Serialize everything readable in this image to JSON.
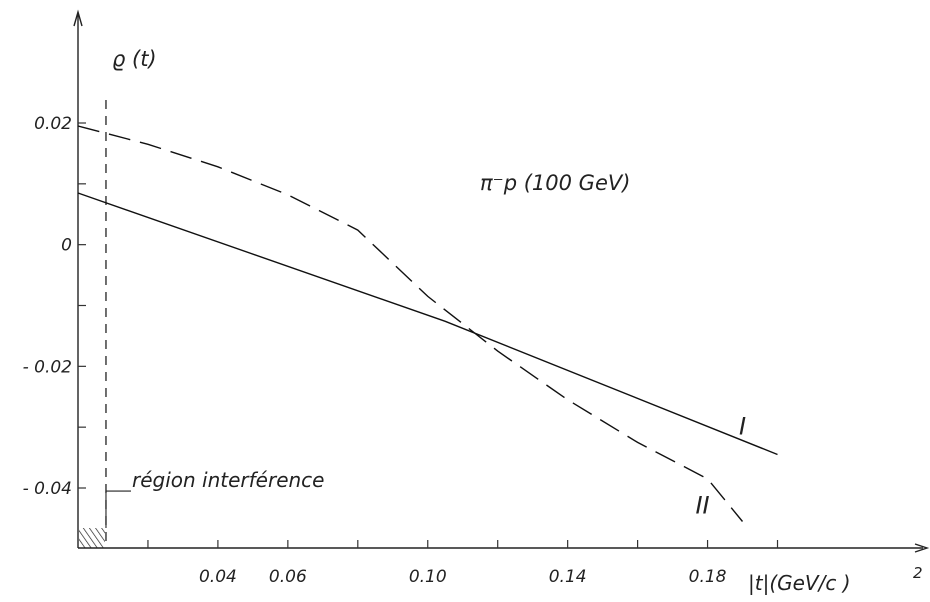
{
  "chart_data": {
    "type": "line",
    "title": "",
    "ylabel": "ϱ (t)",
    "xlabel_parts": {
      "main": "|t|(GeV/c )",
      "exponent": "2"
    },
    "xlim": [
      0.0,
      0.205
    ],
    "ylim": [
      -0.05,
      0.035
    ],
    "x_tick_labels": [
      {
        "value": 0.04,
        "label": "0.04"
      },
      {
        "value": 0.06,
        "label": "0.06"
      },
      {
        "value": 0.1,
        "label": "0.10"
      },
      {
        "value": 0.14,
        "label": "0.14"
      },
      {
        "value": 0.18,
        "label": "0.18"
      }
    ],
    "x_tick_marks": [
      0.02,
      0.04,
      0.06,
      0.08,
      0.1,
      0.12,
      0.14,
      0.16,
      0.18,
      0.2
    ],
    "y_tick_labels": [
      {
        "value": 0.02,
        "label": "0.02"
      },
      {
        "value": 0.0,
        "label": "0"
      },
      {
        "value": -0.02,
        "label": "- 0.02"
      },
      {
        "value": -0.04,
        "label": "- 0.04"
      }
    ],
    "y_tick_marks": [
      0.02,
      0.01,
      0.0,
      -0.01,
      -0.02,
      -0.03,
      -0.04
    ],
    "series": [
      {
        "name": "I",
        "style": "solid",
        "x": [
          0.0,
          0.105,
          0.2
        ],
        "y": [
          0.0085,
          -0.0126,
          -0.0345
        ]
      },
      {
        "name": "II",
        "style": "dashed",
        "x": [
          0.0,
          0.02,
          0.04,
          0.06,
          0.08,
          0.1,
          0.12,
          0.14,
          0.16,
          0.18,
          0.19
        ],
        "y": [
          0.0195,
          0.0165,
          0.0128,
          0.0082,
          0.0024,
          -0.0085,
          -0.0175,
          -0.0255,
          -0.0325,
          -0.0385,
          -0.0455
        ]
      }
    ],
    "reaction_label": "π⁻p (100 GeV)",
    "interference_boundary_x": 0.008,
    "interference_label": "région interférence",
    "grid": false,
    "legend": "none"
  }
}
